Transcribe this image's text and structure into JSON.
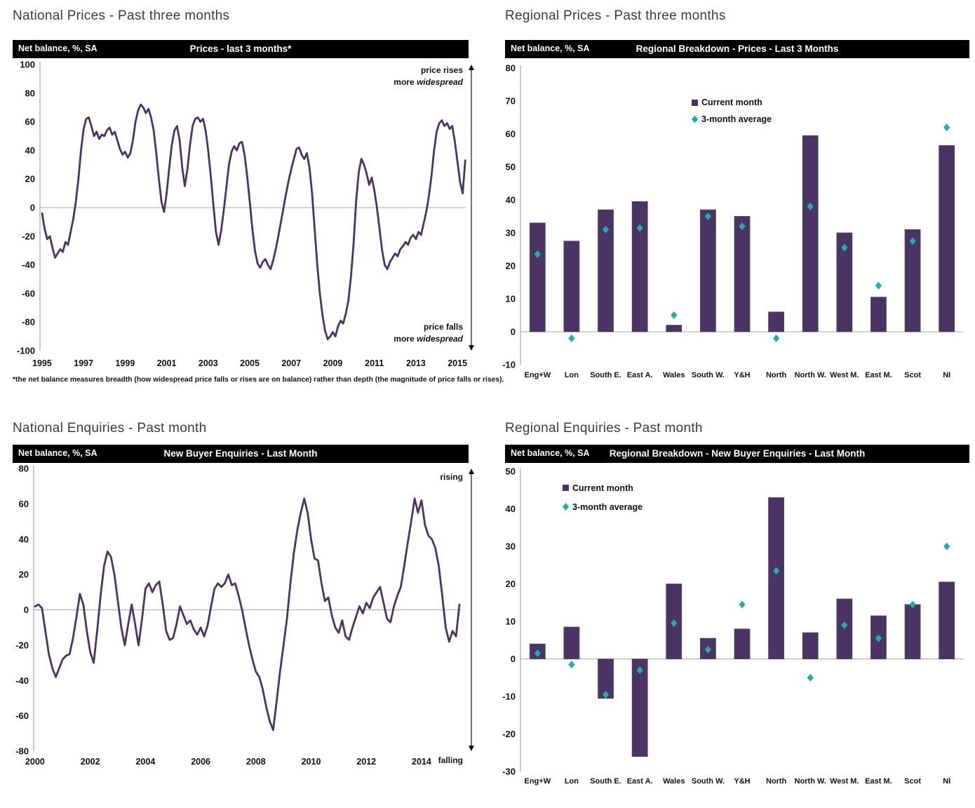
{
  "colors": {
    "series_purple": "#4B3366",
    "series_teal": "#1FAEA9",
    "header_bg": "#000000",
    "header_text": "#ffffff",
    "axis_gray": "#a8a8a8"
  },
  "chart_data": [
    {
      "id": "national-prices",
      "type": "line",
      "section_title": "National Prices - Past three months",
      "header_label": "Net balance, %, SA",
      "title": "Prices - last 3 months*",
      "line_color": "#4B3366",
      "x_start": 1995.0,
      "x_step": 0.125,
      "values": [
        -4,
        -15,
        -22,
        -20,
        -28,
        -35,
        -32,
        -29,
        -31,
        -24,
        -26,
        -17,
        -8,
        4,
        20,
        40,
        55,
        62,
        63,
        57,
        50,
        53,
        48,
        51,
        50,
        54,
        56,
        51,
        53,
        47,
        41,
        37,
        39,
        35,
        38,
        47,
        60,
        68,
        72,
        70,
        66,
        69,
        63,
        54,
        38,
        20,
        4,
        -3,
        10,
        28,
        44,
        54,
        57,
        47,
        28,
        15,
        27,
        44,
        57,
        62,
        63,
        60,
        62,
        54,
        40,
        22,
        2,
        -17,
        -26,
        -16,
        -2,
        14,
        30,
        39,
        43,
        40,
        45,
        46,
        37,
        22,
        4,
        -15,
        -30,
        -39,
        -42,
        -38,
        -36,
        -40,
        -43,
        -37,
        -29,
        -20,
        -10,
        0,
        10,
        19,
        27,
        34,
        41,
        42,
        37,
        34,
        38,
        28,
        10,
        -15,
        -40,
        -60,
        -75,
        -86,
        -92,
        -90,
        -87,
        -90,
        -83,
        -79,
        -81,
        -74,
        -65,
        -48,
        -25,
        5,
        25,
        34,
        30,
        24,
        16,
        21,
        12,
        0,
        -15,
        -30,
        -40,
        -43,
        -38,
        -35,
        -32,
        -34,
        -29,
        -27,
        -24,
        -26,
        -21,
        -19,
        -22,
        -17,
        -19,
        -11,
        -3,
        8,
        22,
        40,
        53,
        59,
        61,
        57,
        59,
        55,
        57,
        46,
        32,
        18,
        10,
        33
      ],
      "xlim": [
        1994.9,
        2015.4
      ],
      "ylim": [
        -100,
        100
      ],
      "yticks": [
        100,
        80,
        60,
        40,
        20,
        0,
        -20,
        -40,
        -60,
        -80,
        -100
      ],
      "xticks": [
        1995,
        1997,
        1999,
        2001,
        2003,
        2005,
        2007,
        2009,
        2011,
        2013,
        2015
      ],
      "grid": "zero-line-only",
      "annotations": {
        "top_line1": "price rises",
        "bottom_line1": "price falls",
        "more_word": "more",
        "widespread_word": "widespread"
      },
      "footnote": "*the net balance measures breadth (how widespread price falls or rises are on balance)  rather than depth (the magnitude of price falls or rises)."
    },
    {
      "id": "regional-prices",
      "type": "bar",
      "section_title": "Regional Prices - Past three months",
      "header_label": "Net balance, %, SA",
      "title": "Regional Breakdown - Prices - Last 3 Months",
      "categories": [
        "Eng+W",
        "Lon",
        "South E.",
        "East A.",
        "Wales",
        "South W.",
        "Y&H",
        "North",
        "North W.",
        "West M.",
        "East M.",
        "Scot",
        "NI"
      ],
      "series": [
        {
          "name": "Current month",
          "marker": "bar",
          "color": "#4B3366",
          "values": [
            33,
            27.5,
            37,
            39.5,
            2,
            37,
            35,
            6,
            59.5,
            30,
            10.5,
            31,
            56.5
          ]
        },
        {
          "name": "3-month average",
          "marker": "diamond",
          "color": "#1FAEA9",
          "values": [
            23.5,
            -2,
            31,
            31.5,
            5,
            35,
            32,
            -2,
            38,
            25.5,
            14,
            27.5,
            62
          ]
        }
      ],
      "ylim": [
        -10,
        80
      ],
      "yticks": [
        80,
        70,
        60,
        50,
        40,
        30,
        20,
        10,
        0,
        -10
      ],
      "legend_position": "top-center",
      "grid": "zero-line-only"
    },
    {
      "id": "national-enquiries",
      "type": "line",
      "section_title": "National Enquiries - Past month",
      "header_label": "Net balance, %, SA",
      "title": "New Buyer Enquiries - Last Month",
      "line_color": "#4B3366",
      "x_start": 2000.0,
      "x_step": 0.125,
      "values": [
        2,
        3,
        1,
        -12,
        -25,
        -33,
        -38,
        -33,
        -28,
        -26,
        -25,
        -16,
        -4,
        9,
        3,
        -12,
        -24,
        -30,
        -12,
        8,
        25,
        33,
        30,
        20,
        5,
        -10,
        -20,
        -8,
        3,
        -8,
        -20,
        -5,
        12,
        15,
        10,
        14,
        16,
        3,
        -12,
        -17,
        -16,
        -8,
        2,
        -3,
        -8,
        -6,
        -11,
        -14,
        -10,
        -15,
        -9,
        2,
        12,
        15,
        13,
        15,
        20,
        14,
        15,
        8,
        0,
        -10,
        -20,
        -28,
        -35,
        -38,
        -45,
        -55,
        -63,
        -68,
        -52,
        -35,
        -20,
        -5,
        15,
        32,
        45,
        55,
        63,
        55,
        40,
        29,
        28,
        15,
        5,
        7,
        -3,
        -10,
        -13,
        -6,
        -15,
        -17,
        -10,
        -4,
        2,
        -2,
        4,
        1,
        7,
        10,
        13,
        4,
        -5,
        -7,
        2,
        8,
        13,
        25,
        38,
        50,
        63,
        55,
        62,
        48,
        42,
        40,
        35,
        25,
        8,
        -10,
        -18,
        -12,
        -15,
        3
      ],
      "xlim": [
        1999.95,
        2015.45
      ],
      "ylim": [
        -80,
        80
      ],
      "yticks": [
        80,
        60,
        40,
        20,
        0,
        -20,
        -40,
        -60,
        -80
      ],
      "xticks": [
        2000,
        2002,
        2004,
        2006,
        2008,
        2010,
        2012,
        2014
      ],
      "grid": "zero-line-only",
      "annotations": {
        "top": "rising",
        "bottom": "falling"
      }
    },
    {
      "id": "regional-enquiries",
      "type": "bar",
      "section_title": "Regional Enquiries - Past month",
      "header_label": "Net balance, %, SA",
      "title": "Regional Breakdown - New Buyer Enquiries - Last Month",
      "categories": [
        "Eng+W",
        "Lon",
        "South E.",
        "East A.",
        "Wales",
        "South W.",
        "Y&H",
        "North",
        "North W.",
        "West M.",
        "East M.",
        "Scot",
        "NI"
      ],
      "series": [
        {
          "name": "Current month",
          "marker": "bar",
          "color": "#4B3366",
          "values": [
            4,
            8.5,
            -10.5,
            -26,
            20,
            5.5,
            8,
            43,
            7,
            16,
            11.5,
            14.5,
            20.5
          ]
        },
        {
          "name": "3-month average",
          "marker": "diamond",
          "color": "#1FAEA9",
          "values": [
            1.5,
            -1.5,
            -9.5,
            -3,
            9.5,
            2.5,
            14.5,
            23.5,
            -5,
            9,
            5.5,
            14.5,
            30
          ]
        }
      ],
      "ylim": [
        -30,
        50
      ],
      "yticks": [
        50,
        40,
        30,
        20,
        10,
        0,
        -10,
        -20,
        -30
      ],
      "legend_position": "top-left",
      "grid": "zero-line-only"
    }
  ]
}
